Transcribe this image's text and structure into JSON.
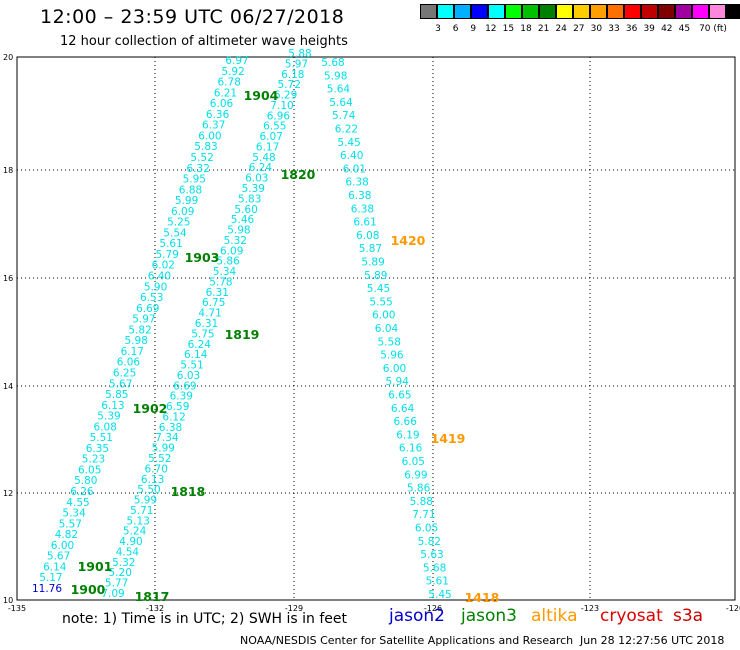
{
  "header": {
    "title": "12:00 – 23:59 UTC 06/27/2018",
    "subtitle": "12 hour collection of altimeter wave heights"
  },
  "legend": {
    "colors": [
      "#777777",
      "#00ffff",
      "#00b0ff",
      "#0000ff",
      "#00ffff",
      "#00ff00",
      "#00c000",
      "#008000",
      "#ffff00",
      "#ffcc00",
      "#ffa000",
      "#ff7000",
      "#ff0000",
      "#c00000",
      "#800000",
      "#a000a0",
      "#ff00ff",
      "#ff88dd",
      "#000000"
    ],
    "labels": [
      "3",
      "6",
      "9",
      "12",
      "15",
      "18",
      "21",
      "24",
      "27",
      "30",
      "33",
      "36",
      "39",
      "42",
      "45",
      "70 (ft)"
    ]
  },
  "axes": {
    "y_ticks": [
      "20",
      "18",
      "16",
      "14",
      "12",
      "10"
    ],
    "x_ticks": [
      "-135",
      "-132",
      "-129",
      "-126",
      "-123",
      "-120"
    ]
  },
  "colors": {
    "swh": "#00dfe8",
    "jason2": "#0000cc",
    "jason3": "#008000",
    "altika": "#ff9900",
    "cryosat": "#dd0000",
    "s3a": "#cc0000",
    "grid": "#000000"
  },
  "tracks": [
    {
      "id": "jason3-left",
      "values": [
        "11.76",
        "5.17",
        "6.14",
        "5.67",
        "6.00",
        "4.82",
        "5.57",
        "5.34",
        "4.55",
        "6.26",
        "5.80",
        "6.05",
        "5.23",
        "6.35",
        "5.51",
        "6.08",
        "5.39",
        "6.13",
        "5.85",
        "5.67",
        "6.25",
        "6.06",
        "6.17",
        "5.98",
        "5.82",
        "5.97",
        "6.69",
        "6.53",
        "5.90",
        "6.40",
        "6.02",
        "5.79",
        "5.61",
        "5.54",
        "5.25",
        "6.09",
        "5.99",
        "6.88",
        "5.95",
        "6.32",
        "5.52",
        "5.83",
        "6.00",
        "6.37",
        "6.36",
        "6.06",
        "6.21",
        "6.78",
        "5.92",
        "6.97"
      ]
    },
    {
      "id": "jason3-right",
      "values": [
        "7.09",
        "5.77",
        "5.20",
        "5.32",
        "4.54",
        "4.90",
        "5.24",
        "5.13",
        "5.71",
        "5.99",
        "5.50",
        "6.13",
        "6.70",
        "5.52",
        "5.99",
        "7.34",
        "6.38",
        "6.12",
        "6.59",
        "6.39",
        "6.69",
        "6.03",
        "5.51",
        "6.14",
        "6.24",
        "5.75",
        "6.31",
        "4.71",
        "6.75",
        "6.31",
        "5.78",
        "5.34",
        "5.86",
        "6.09",
        "5.32",
        "5.98",
        "5.46",
        "5.60",
        "5.83",
        "5.39",
        "6.03",
        "6.24",
        "5.48",
        "6.17",
        "6.07",
        "6.55",
        "6.96",
        "7.10",
        "6.29",
        "5.72",
        "6.18",
        "5.97",
        "5.88"
      ]
    },
    {
      "id": "altika",
      "values": [
        "5.45",
        "5.61",
        "5.68",
        "5.63",
        "5.82",
        "6.05",
        "7.71",
        "5.88",
        "5.86",
        "6.99",
        "6.05",
        "6.16",
        "6.19",
        "6.66",
        "6.64",
        "6.65",
        "5.94",
        "6.00",
        "5.96",
        "5.58",
        "6.04",
        "6.00",
        "5.55",
        "5.45",
        "5.89",
        "5.89",
        "5.87",
        "6.08",
        "6.61",
        "6.38",
        "6.38",
        "6.38",
        "6.01",
        "6.40",
        "5.45",
        "6.22",
        "5.74",
        "5.64",
        "5.64",
        "5.98",
        "5.68"
      ]
    }
  ],
  "times": [
    {
      "label": "1900",
      "color": "jason3"
    },
    {
      "label": "1901",
      "color": "jason3"
    },
    {
      "label": "1902",
      "color": "jason3"
    },
    {
      "label": "1903",
      "color": "jason3"
    },
    {
      "label": "1904",
      "color": "jason3"
    },
    {
      "label": "1817",
      "color": "jason3"
    },
    {
      "label": "1818",
      "color": "jason3"
    },
    {
      "label": "1819",
      "color": "jason3"
    },
    {
      "label": "1820",
      "color": "jason3"
    },
    {
      "label": "1418",
      "color": "altika"
    },
    {
      "label": "1419",
      "color": "altika"
    },
    {
      "label": "1420",
      "color": "altika"
    }
  ],
  "footer": {
    "note": "note: 1) Time is in UTC; 2) SWH is in feet",
    "satellites": [
      {
        "name": "jason2",
        "color": "jason2"
      },
      {
        "name": "jason3",
        "color": "jason3"
      },
      {
        "name": "altika",
        "color": "altika"
      },
      {
        "name": "cryosat",
        "color": "cryosat"
      },
      {
        "name": "s3a",
        "color": "s3a"
      }
    ],
    "credit": "NOAA/NESDIS Center for Satellite Applications and Research",
    "timestamp": "Jun 28 12:27:56 UTC 2018"
  }
}
